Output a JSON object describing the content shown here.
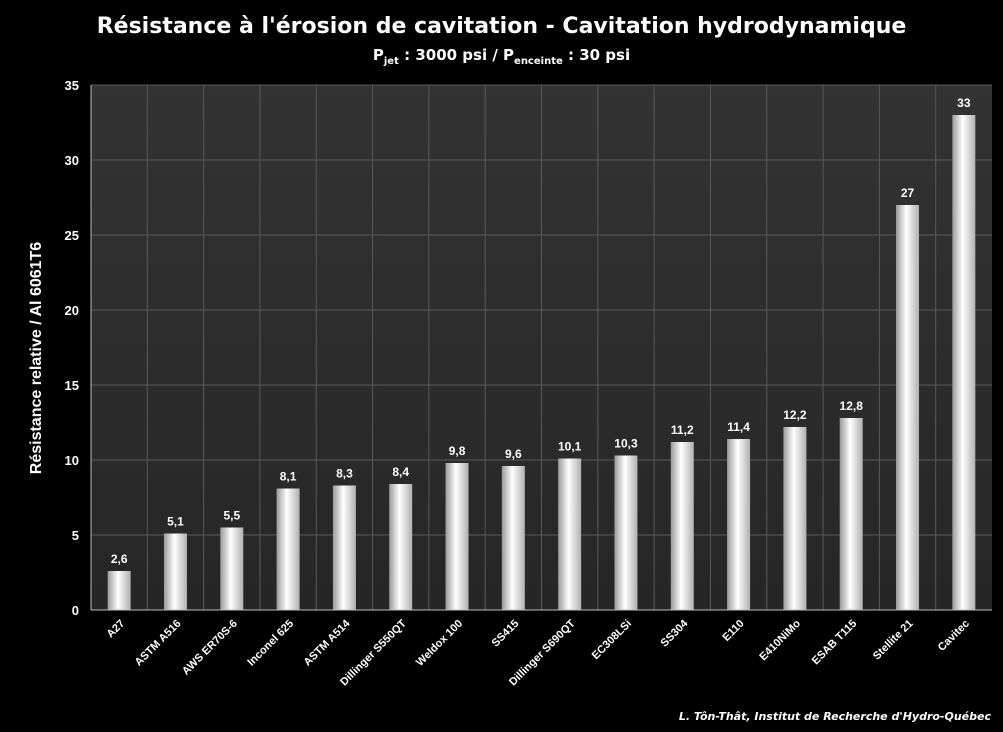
{
  "title": "Résistance à l'érosion de cavitation - Cavitation hydrodynamique",
  "subtitle": {
    "p1": "P",
    "p1_sub": "jet",
    "mid": " : 3000 psi / ",
    "p2": "P",
    "p2_sub": "enceinte",
    "end": " : 30 psi"
  },
  "credit": "L. Tôn-Thât, Institut de Recherche d'Hydro-Québec",
  "chart_data": {
    "type": "bar",
    "title": "Résistance à l'érosion de cavitation - Cavitation hydrodynamique",
    "xlabel": "",
    "ylabel": "Résistance relative / Al 6061T6",
    "ylim": [
      0,
      35
    ],
    "yticks": [
      0,
      5,
      10,
      15,
      20,
      25,
      30,
      35
    ],
    "grid": true,
    "legend": "none",
    "categories": [
      "A27",
      "ASTM A516",
      "AWS ER70S-6",
      "Inconel 625",
      "ASTM A514",
      "Dillinger S550QT",
      "Weldox 100",
      "SS415",
      "Dillinger S690QT",
      "EC308LSi",
      "SS304",
      "E110",
      "E410NiMo",
      "ESAB T115",
      "Stellite 21",
      "Cavitec"
    ],
    "values": [
      2.6,
      5.1,
      5.5,
      8.1,
      8.3,
      8.4,
      9.8,
      9.6,
      10.1,
      10.3,
      11.2,
      11.4,
      12.2,
      12.8,
      27,
      33
    ],
    "value_labels": [
      "2,6",
      "5,1",
      "5,5",
      "8,1",
      "8,3",
      "8,4",
      "9,8",
      "9,6",
      "10,1",
      "10,3",
      "11,2",
      "11,4",
      "12,2",
      "12,8",
      "27",
      "33"
    ]
  },
  "colors": {
    "background": "#000000",
    "plot_area": "#2b2b2b",
    "grid": "#5a5a5a",
    "bar_light": "#ffffff",
    "bar_dark": "#8c8c8c",
    "text": "#ffffff"
  }
}
